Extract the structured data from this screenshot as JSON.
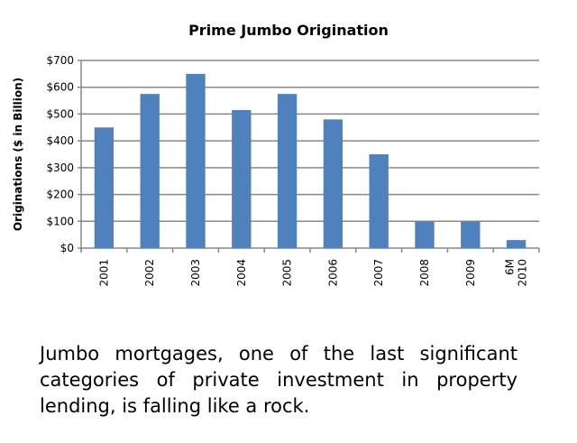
{
  "chart_data": {
    "type": "bar",
    "title": "Prime Jumbo Origination",
    "xlabel": "",
    "ylabel": "Originations ($ in Billion)",
    "categories": [
      "2001",
      "2002",
      "2003",
      "2004",
      "2005",
      "2006",
      "2007",
      "2008",
      "2009",
      "6M 2010"
    ],
    "values": [
      450,
      575,
      650,
      515,
      575,
      480,
      350,
      100,
      100,
      30
    ],
    "ylim": [
      0,
      700
    ],
    "yticks": [
      "$0",
      "$100",
      "$200",
      "$300",
      "$400",
      "$500",
      "$600",
      "$700"
    ],
    "grid": true,
    "bar_color": "#4f81bd"
  },
  "caption": {
    "lines": [
      "Jumbo mortgages, one of the last significant",
      "categories of private investment in property",
      "lending, is falling like a rock."
    ]
  }
}
